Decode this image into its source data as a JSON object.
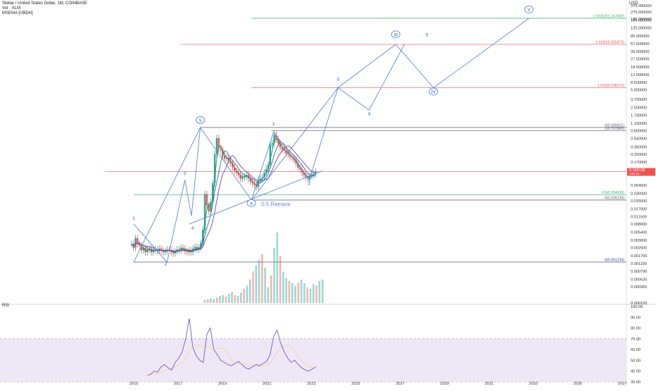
{
  "header": {
    "symbol_line": "Stellar / United States Dollar, 1M, COINBASE",
    "vol_line": "Vol · XLM",
    "msema_line": "MSEMA [UBDH]"
  },
  "rsi_panel": {
    "label": "RSI"
  },
  "currency_label": "USD",
  "colors": {
    "wave": "#5b8bd9",
    "fib_red": "#e35a5a",
    "fib_green": "#3aaa6e",
    "fib_gray": "#5a5a6a",
    "fib_navy": "#31407a",
    "rsi_line": "#7e57c2",
    "rsi_band": "#ede7f6",
    "candle_up": "#26a69a",
    "candle_down": "#ef5350",
    "price_tag": "#ef5350"
  },
  "chart_data": [
    {
      "type": "line",
      "title": "Stellar / United States Dollar, 1M, COINBASE",
      "y_scale": "log",
      "ylim": [
        0.000165,
        375
      ],
      "xlim": [
        2015,
        2037
      ],
      "x_ticks": [
        "2015",
        "2017",
        "2019",
        "2021",
        "2023",
        "2025",
        "2027",
        "2029",
        "2031",
        "2033",
        "2035",
        "2037"
      ],
      "y_ticks": [
        "375.000000",
        "275.000000",
        "195.000000",
        "185.000000",
        "125.000000",
        "85.000000",
        "57.500000",
        "39.500000",
        "27.500000",
        "18.500000",
        "12.500000",
        "8.500000",
        "5.900000",
        "3.700000",
        "2.500000",
        "1.700000",
        "1.150000",
        "0.800000",
        "0.540000",
        "0.360000",
        "0.250000",
        "0.170000",
        "0.054000",
        "0.036000",
        "0.025000",
        "0.017000",
        "0.011500",
        "0.008000",
        "0.005400",
        "0.003600",
        "0.002500",
        "0.001700",
        "0.001150",
        "0.000790",
        "0.000530",
        "0.000365",
        "0.000165"
      ],
      "price_tag": {
        "value": "0.106136",
        "sub": "132:16",
        "value_num": 0.106136
      },
      "fib_levels": [
        {
          "label": "2.618(201.247492)",
          "value": 201.247492,
          "color": "green",
          "x_start": 2020.3,
          "x_end": 2037
        },
        {
          "label": "1.618(55.595873)",
          "value": 55.595873,
          "color": "red",
          "x_start": 2017.1,
          "x_end": 2037
        },
        {
          "label": "1.618(6.596073)",
          "value": 6.596073,
          "color": "red",
          "x_start": 2020.3,
          "x_end": 2037
        },
        {
          "label": "0(0.930921)",
          "value": 0.930921,
          "color": "gray",
          "x_start": 2018.0,
          "x_end": 2037
        },
        {
          "label": "1(0.797800)",
          "value": 0.7978,
          "color": "gray",
          "x_start": 2021.2,
          "x_end": 2037
        },
        {
          "label": "0.5(0.034035)",
          "value": 0.034035,
          "color": "green",
          "x_start": 2015,
          "x_end": 2037
        },
        {
          "label": "0(0.026139)",
          "value": 0.026139,
          "color": "gray",
          "x_start": 2020.3,
          "x_end": 2037
        },
        {
          "label": "0(0.001234)",
          "value": 0.001234,
          "color": "navy",
          "x_start": 2015,
          "x_end": 2037
        },
        {
          "label": "",
          "value": 0.106,
          "color": "red",
          "x_start": 2013.7,
          "x_end": 2037
        }
      ],
      "waves": [
        {
          "name": "primary",
          "points": [
            [
              2015.0,
              0.00123
            ],
            [
              2018.0,
              0.93
            ],
            [
              2020.3,
              0.026
            ],
            [
              2024.2,
              6.6
            ],
            [
              2026.8,
              55.6
            ],
            [
              2028.5,
              6.59
            ],
            [
              2032.8,
              201
            ]
          ]
        },
        {
          "name": "sub_1_5",
          "points": [
            [
              2015.0,
              0.008
            ],
            [
              2016.5,
              0.00123
            ],
            [
              2017.3,
              0.07
            ],
            [
              2017.6,
              0.012
            ],
            [
              2018.0,
              0.93
            ]
          ]
        },
        {
          "name": "sub_3_5_projection",
          "points": [
            [
              2020.3,
              0.026
            ],
            [
              2021.3,
              0.75
            ],
            [
              2022.9,
              0.07
            ],
            [
              2024.2,
              6.6
            ],
            [
              2025.6,
              2.2
            ],
            [
              2027.2,
              57
            ]
          ]
        },
        {
          "name": "trendline",
          "points": [
            [
              2017.5,
              0.008
            ],
            [
              2023.5,
              0.11
            ]
          ]
        }
      ],
      "wave_labels": [
        {
          "text": "1",
          "x": 2015.0,
          "y": 0.01
        },
        {
          "text": "2",
          "x": 2016.45,
          "y": 0.00108
        },
        {
          "text": "3",
          "x": 2017.3,
          "y": 0.095
        },
        {
          "text": "4",
          "x": 2017.65,
          "y": 0.0062
        },
        {
          "text": "5",
          "x": 2018.0,
          "y": 1.25,
          "circled": true
        },
        {
          "text": "1",
          "x": 2021.3,
          "y": 1.05
        },
        {
          "text": "2",
          "x": 2022.9,
          "y": 0.056
        },
        {
          "text": "II",
          "x": 2020.3,
          "y": 0.021,
          "circled": true
        },
        {
          "text": "3",
          "x": 2024.2,
          "y": 9.5
        },
        {
          "text": "4",
          "x": 2025.6,
          "y": 1.75
        },
        {
          "text": "III",
          "x": 2026.8,
          "y": 85,
          "circled": true
        },
        {
          "text": "5",
          "x": 2028.2,
          "y": 85
        },
        {
          "text": "IV",
          "x": 2028.5,
          "y": 5.1,
          "circled": true
        },
        {
          "text": "V",
          "x": 2032.8,
          "y": 290,
          "circled": true
        }
      ],
      "annotations": [
        {
          "text": "0.5 Retrace",
          "x": 2021.4,
          "y": 0.021
        }
      ],
      "price_candles_close": [
        0.003,
        0.0025,
        0.004,
        0.003,
        0.0028,
        0.0022,
        0.0025,
        0.002,
        0.0023,
        0.0024,
        0.002,
        0.0022,
        0.0023,
        0.0021,
        0.0024,
        0.0022,
        0.002,
        0.0021,
        0.0023,
        0.0022,
        0.002,
        0.0019,
        0.0021,
        0.0023,
        0.0022,
        0.0025,
        0.0024,
        0.0021,
        0.002,
        0.0022,
        0.002,
        0.0024,
        0.0026,
        0.0023,
        0.0025,
        0.0032,
        0.006,
        0.035,
        0.02,
        0.015,
        0.024,
        0.06,
        0.25,
        0.55,
        0.33,
        0.31,
        0.23,
        0.2,
        0.21,
        0.18,
        0.16,
        0.13,
        0.11,
        0.1,
        0.09,
        0.075,
        0.08,
        0.085,
        0.09,
        0.075,
        0.065,
        0.06,
        0.055,
        0.05,
        0.07,
        0.075,
        0.08,
        0.1,
        0.12,
        0.15,
        0.4,
        0.43,
        0.65,
        0.52,
        0.43,
        0.35,
        0.32,
        0.3,
        0.26,
        0.25,
        0.22,
        0.21,
        0.19,
        0.16,
        0.13,
        0.12,
        0.1,
        0.09,
        0.08,
        0.075,
        0.085,
        0.09,
        0.095,
        0.106
      ],
      "volume": [
        4,
        5,
        6,
        5,
        7,
        9,
        10,
        8,
        12,
        14,
        10,
        9,
        13,
        18,
        22,
        30,
        40,
        48,
        55,
        62,
        45,
        20,
        35,
        70,
        90,
        60,
        40,
        32,
        28,
        25,
        22,
        26,
        30,
        25,
        20,
        18,
        24,
        22,
        28,
        30
      ],
      "rsi": [
        36,
        37,
        40,
        39,
        44,
        46,
        43,
        41,
        48,
        52,
        58,
        70,
        89,
        62,
        54,
        50,
        48,
        74,
        80,
        60,
        55,
        50,
        48,
        46,
        45,
        47,
        49,
        46,
        43,
        42,
        44,
        46,
        45,
        47,
        49,
        55,
        72,
        78,
        66,
        58,
        52,
        48,
        50,
        46,
        43,
        41,
        40,
        42,
        44
      ],
      "rsi_axis": [
        "100.00",
        "90.00",
        "80.00",
        "70.00",
        "60.00",
        "50.00",
        "40.00",
        "30.00"
      ],
      "rsi_band": [
        30,
        70
      ]
    }
  ]
}
